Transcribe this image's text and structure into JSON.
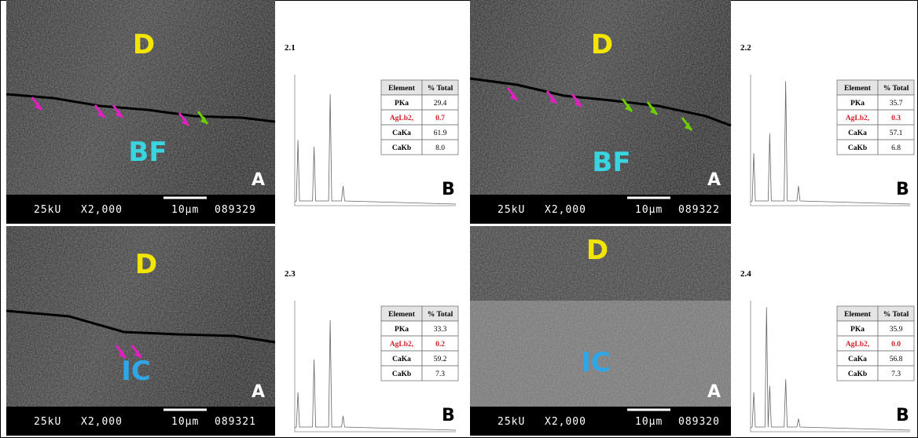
{
  "panels": [
    {
      "id": "2.1",
      "sem": {
        "labels": [
          "D",
          "BF"
        ],
        "corner": "A",
        "footer": {
          "voltage": "25kU",
          "magnification": "X2,000",
          "scale": "10µm",
          "code": "089329"
        }
      },
      "spectrum": {
        "corner": "B",
        "table": {
          "header": [
            "Element",
            "% Total"
          ],
          "rows": [
            [
              "PKa",
              "29.4"
            ],
            [
              "AgLb2,",
              "0.7"
            ],
            [
              "CaKa",
              "61.9"
            ],
            [
              "CaKb",
              "8.0"
            ]
          ]
        }
      }
    },
    {
      "id": "2.2",
      "sem": {
        "labels": [
          "D",
          "BF"
        ],
        "corner": "A",
        "footer": {
          "voltage": "25kU",
          "magnification": "X2,000",
          "scale": "10µm",
          "code": "089322"
        }
      },
      "spectrum": {
        "corner": "B",
        "table": {
          "header": [
            "Element",
            "% Total"
          ],
          "rows": [
            [
              "PKa",
              "35.7"
            ],
            [
              "AgLb2,",
              "0.3"
            ],
            [
              "CaKa",
              "57.1"
            ],
            [
              "CaKb",
              "6.8"
            ]
          ]
        }
      }
    },
    {
      "id": "2.3",
      "sem": {
        "labels": [
          "D",
          "IC"
        ],
        "corner": "A",
        "footer": {
          "voltage": "25kU",
          "magnification": "X2,000",
          "scale": "10µm",
          "code": "089321"
        }
      },
      "spectrum": {
        "corner": "B",
        "table": {
          "header": [
            "Element",
            "% Total"
          ],
          "rows": [
            [
              "PKa",
              "33.3"
            ],
            [
              "AgLb2,",
              "0.2"
            ],
            [
              "CaKa",
              "59.2"
            ],
            [
              "CaKb",
              "7.3"
            ]
          ]
        }
      }
    },
    {
      "id": "2.4",
      "sem": {
        "labels": [
          "D",
          "IC"
        ],
        "corner": "A",
        "footer": {
          "voltage": "25kU",
          "magnification": "X2,000",
          "scale": "10µm",
          "code": "089320"
        }
      },
      "spectrum": {
        "corner": "B",
        "table": {
          "header": [
            "Element",
            "% Total"
          ],
          "rows": [
            [
              "PKa",
              "35.9"
            ],
            [
              "AgLb2,",
              "0.0"
            ],
            [
              "CaKa",
              "56.8"
            ],
            [
              "CaKb",
              "7.3"
            ]
          ]
        }
      }
    }
  ]
}
